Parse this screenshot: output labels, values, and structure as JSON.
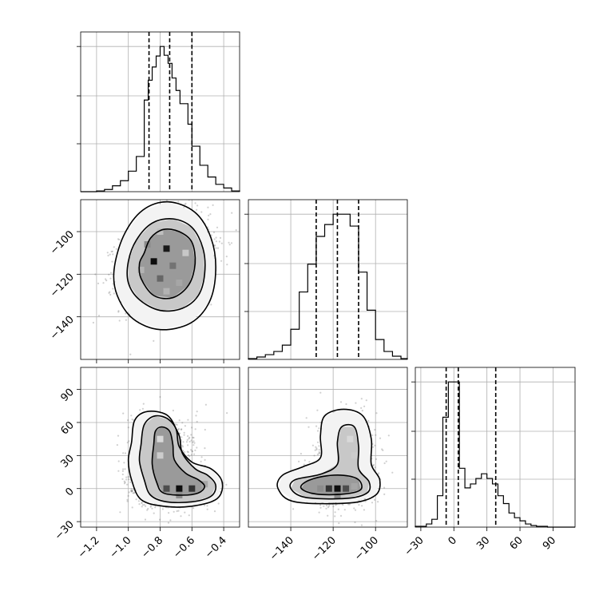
{
  "chart_data": {
    "type": "corner",
    "parameters": [
      {
        "range": [
          -1.3,
          -0.3
        ],
        "ticks": [
          -1.2,
          -1.0,
          -0.8,
          -0.6,
          -0.4
        ],
        "tick_labels": [
          "−1.2",
          "−1.0",
          "−0.8",
          "−0.6",
          "−0.4"
        ],
        "quantiles": [
          -0.87,
          -0.74,
          -0.6
        ],
        "histogram": {
          "bin_edges": [
            -1.2,
            -1.15,
            -1.1,
            -1.05,
            -1.0,
            -0.95,
            -0.9,
            -0.875,
            -0.85,
            -0.825,
            -0.8,
            -0.775,
            -0.75,
            -0.725,
            -0.7,
            -0.675,
            -0.65,
            -0.625,
            -0.6,
            -0.55,
            -0.5,
            -0.45,
            -0.4,
            -0.35,
            -0.3
          ],
          "counts": [
            1,
            3,
            8,
            15,
            28,
            48,
            125,
            152,
            170,
            185,
            198,
            186,
            175,
            155,
            138,
            120,
            120,
            92,
            62,
            36,
            20,
            10,
            5,
            1
          ]
        }
      },
      {
        "range": [
          -160,
          -85
        ],
        "ticks": [
          -140,
          -120,
          -100
        ],
        "tick_labels": [
          "−140",
          "−120",
          "−100"
        ],
        "quantiles": [
          -128,
          -118,
          -108
        ],
        "histogram": {
          "bin_edges": [
            -160,
            -156,
            -152,
            -148,
            -144,
            -140,
            -136,
            -132,
            -128,
            -124,
            -120,
            -116,
            -112,
            -108,
            -104,
            -100,
            -96,
            -92,
            -88,
            -85
          ],
          "counts": [
            1,
            3,
            6,
            10,
            18,
            38,
            85,
            120,
            155,
            170,
            183,
            183,
            168,
            110,
            62,
            25,
            10,
            4,
            1
          ]
        }
      },
      {
        "range": [
          -35,
          110
        ],
        "ticks": [
          -30,
          0,
          30,
          60,
          90
        ],
        "tick_labels": [
          "−30",
          "0",
          "30",
          "60",
          "90"
        ],
        "quantiles": [
          -7,
          4,
          38
        ],
        "histogram": {
          "bin_edges": [
            -35,
            -30,
            -25,
            -20,
            -15,
            -10,
            -5,
            0,
            5,
            10,
            15,
            20,
            25,
            30,
            35,
            40,
            45,
            50,
            55,
            60,
            65,
            70,
            75,
            80,
            85,
            90,
            95,
            100,
            110
          ],
          "counts": [
            1,
            1,
            4,
            10,
            40,
            140,
            185,
            185,
            75,
            50,
            55,
            62,
            68,
            62,
            55,
            40,
            30,
            18,
            12,
            8,
            4,
            2,
            1,
            1,
            0,
            0,
            0,
            0
          ]
        }
      }
    ],
    "pairs": [
      {
        "x": 0,
        "y": 1,
        "center": [
          -0.77,
          -113
        ],
        "spread": [
          0.14,
          10
        ],
        "correlation": 0.3,
        "points": 1800,
        "contours": [
          [
            [
              -0.9,
              -110
            ],
            [
              -0.86,
              -103
            ],
            [
              -0.78,
              -99
            ],
            [
              -0.68,
              -100
            ],
            [
              -0.6,
              -105
            ],
            [
              -0.58,
              -115
            ],
            [
              -0.62,
              -125
            ],
            [
              -0.72,
              -131
            ],
            [
              -0.84,
              -130
            ],
            [
              -0.92,
              -122
            ],
            [
              -0.93,
              -115
            ]
          ],
          [
            [
              -1.0,
              -114
            ],
            [
              -0.95,
              -104
            ],
            [
              -0.85,
              -96
            ],
            [
              -0.72,
              -94
            ],
            [
              -0.6,
              -98
            ],
            [
              -0.53,
              -108
            ],
            [
              -0.52,
              -120
            ],
            [
              -0.56,
              -130
            ],
            [
              -0.66,
              -136
            ],
            [
              -0.8,
              -137
            ],
            [
              -0.93,
              -132
            ],
            [
              -1.0,
              -124
            ]
          ],
          [
            [
              -1.09,
              -118
            ],
            [
              -1.03,
              -102
            ],
            [
              -0.91,
              -90
            ],
            [
              -0.75,
              -86
            ],
            [
              -0.58,
              -91
            ],
            [
              -0.48,
              -103
            ],
            [
              -0.45,
              -118
            ],
            [
              -0.49,
              -133
            ],
            [
              -0.61,
              -143
            ],
            [
              -0.8,
              -146
            ],
            [
              -0.97,
              -141
            ],
            [
              -1.07,
              -130
            ]
          ]
        ],
        "density_cells": [
          {
            "x": -0.84,
            "y": -114,
            "level": 0.95
          },
          {
            "x": -0.76,
            "y": -108,
            "level": 0.9
          },
          {
            "x": -0.8,
            "y": -122,
            "level": 0.6
          },
          {
            "x": -0.72,
            "y": -116,
            "level": 0.55
          },
          {
            "x": -0.88,
            "y": -106,
            "level": 0.45
          },
          {
            "x": -0.68,
            "y": -124,
            "level": 0.35
          },
          {
            "x": -0.76,
            "y": -128,
            "level": 0.3
          },
          {
            "x": -0.92,
            "y": -118,
            "level": 0.3
          },
          {
            "x": -0.8,
            "y": -100,
            "level": 0.25
          },
          {
            "x": -0.64,
            "y": -110,
            "level": 0.22
          }
        ]
      },
      {
        "x": 0,
        "y": 2,
        "center": [
          -0.72,
          5
        ],
        "spread": [
          0.13,
          22
        ],
        "correlation": 0.0,
        "points": 1800,
        "contours": [
          [
            [
              -0.84,
              40
            ],
            [
              -0.83,
              52
            ],
            [
              -0.79,
              56
            ],
            [
              -0.74,
              52
            ],
            [
              -0.72,
              40
            ],
            [
              -0.71,
              26
            ],
            [
              -0.64,
              14
            ],
            [
              -0.56,
              8
            ],
            [
              -0.52,
              2
            ],
            [
              -0.56,
              -4
            ],
            [
              -0.66,
              -6
            ],
            [
              -0.78,
              -4
            ],
            [
              -0.82,
              5
            ],
            [
              -0.85,
              22
            ]
          ],
          [
            [
              -0.92,
              40
            ],
            [
              -0.9,
              58
            ],
            [
              -0.83,
              66
            ],
            [
              -0.74,
              62
            ],
            [
              -0.68,
              48
            ],
            [
              -0.66,
              32
            ],
            [
              -0.58,
              18
            ],
            [
              -0.5,
              12
            ],
            [
              -0.45,
              3
            ],
            [
              -0.48,
              -7
            ],
            [
              -0.6,
              -12
            ],
            [
              -0.76,
              -12
            ],
            [
              -0.86,
              -6
            ],
            [
              -0.9,
              8
            ],
            [
              -0.93,
              25
            ]
          ],
          [
            [
              -0.98,
              42
            ],
            [
              -0.96,
              62
            ],
            [
              -0.88,
              70
            ],
            [
              -0.76,
              67
            ],
            [
              -0.7,
              54
            ],
            [
              -0.68,
              38
            ],
            [
              -0.6,
              24
            ],
            [
              -0.48,
              18
            ],
            [
              -0.41,
              6
            ],
            [
              -0.44,
              -9
            ],
            [
              -0.6,
              -16
            ],
            [
              -0.78,
              -16
            ],
            [
              -0.92,
              -10
            ],
            [
              -0.98,
              8
            ],
            [
              -1.0,
              26
            ]
          ]
        ],
        "density_cells": [
          {
            "x": -0.68,
            "y": 0,
            "level": 0.95
          },
          {
            "x": -0.6,
            "y": 0,
            "level": 0.8
          },
          {
            "x": -0.76,
            "y": 0,
            "level": 0.7
          },
          {
            "x": -0.68,
            "y": -6,
            "level": 0.45
          },
          {
            "x": -0.52,
            "y": 4,
            "level": 0.35
          },
          {
            "x": -0.8,
            "y": 30,
            "level": 0.2
          },
          {
            "x": -0.8,
            "y": 45,
            "level": 0.15
          }
        ]
      },
      {
        "x": 1,
        "y": 2,
        "center": [
          -118,
          5
        ],
        "spread": [
          8.5,
          22
        ],
        "correlation": 0.0,
        "points": 1800,
        "contours": [
          [
            [
              -135,
              0
            ],
            [
              -128,
              -5
            ],
            [
              -115,
              -5
            ],
            [
              -107,
              -1
            ],
            [
              -108,
              8
            ],
            [
              -115,
              12
            ],
            [
              -125,
              11
            ],
            [
              -133,
              6
            ]
          ],
          [
            [
              -140,
              0
            ],
            [
              -133,
              -8
            ],
            [
              -114,
              -9
            ],
            [
              -104,
              -4
            ],
            [
              -103,
              6
            ],
            [
              -108,
              18
            ],
            [
              -108,
              38
            ],
            [
              -110,
              56
            ],
            [
              -116,
              56
            ],
            [
              -118,
              42
            ],
            [
              -118,
              22
            ],
            [
              -126,
              13
            ],
            [
              -138,
              8
            ]
          ],
          [
            [
              -146,
              0
            ],
            [
              -138,
              -12
            ],
            [
              -112,
              -13
            ],
            [
              -100,
              -6
            ],
            [
              -98,
              8
            ],
            [
              -102,
              22
            ],
            [
              -102,
              45
            ],
            [
              -106,
              66
            ],
            [
              -115,
              72
            ],
            [
              -124,
              66
            ],
            [
              -126,
              48
            ],
            [
              -126,
              28
            ],
            [
              -134,
              20
            ],
            [
              -144,
              12
            ]
          ]
        ],
        "density_cells": [
          {
            "x": -118,
            "y": 0,
            "level": 0.95
          },
          {
            "x": -122,
            "y": 0,
            "level": 0.8
          },
          {
            "x": -114,
            "y": 0,
            "level": 0.7
          },
          {
            "x": -126,
            "y": 0,
            "level": 0.45
          },
          {
            "x": -118,
            "y": -6,
            "level": 0.45
          },
          {
            "x": -110,
            "y": 2,
            "level": 0.35
          },
          {
            "x": -110,
            "y": 30,
            "level": 0.2
          },
          {
            "x": -112,
            "y": 45,
            "level": 0.15
          }
        ]
      }
    ]
  }
}
